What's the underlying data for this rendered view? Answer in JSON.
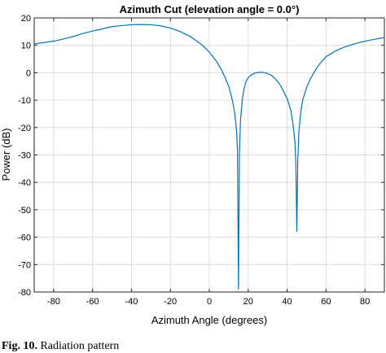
{
  "figure": {
    "caption_label": "Fig. 10.",
    "caption_text": "Radiation pattern"
  },
  "chart_data": {
    "type": "line",
    "title": "Azimuth Cut (elevation angle = 0.0°)",
    "xlabel": "Azimuth Angle (degrees)",
    "ylabel": "Power (dB)",
    "xlim": [
      -90,
      90
    ],
    "ylim": [
      -80,
      20
    ],
    "xticks": [
      -80,
      -60,
      -40,
      -20,
      0,
      20,
      40,
      60,
      80
    ],
    "yticks": [
      20,
      10,
      0,
      -10,
      -20,
      -30,
      -40,
      -50,
      -60,
      -70,
      -80
    ],
    "grid": true,
    "line_color": "#0072bd",
    "series": [
      {
        "x": [
          -90,
          -85,
          -80,
          -75,
          -70,
          -65,
          -60,
          -55,
          -50,
          -45,
          -40,
          -35,
          -30,
          -25,
          -20,
          -15,
          -10,
          -5,
          -2,
          0,
          2,
          4,
          6,
          8,
          10,
          11,
          12,
          13,
          14,
          14.5,
          15,
          15.5,
          16,
          17,
          18,
          19,
          20,
          22,
          24,
          26,
          28,
          30,
          32,
          34,
          36,
          38,
          40,
          41,
          42,
          43,
          44,
          44.5,
          45,
          45.5,
          46,
          47,
          48,
          50,
          52,
          54,
          56,
          58,
          60,
          65,
          70,
          75,
          80,
          85,
          90
        ],
        "y": [
          10.5,
          11.0,
          11.5,
          12.3,
          13.2,
          14.3,
          15.2,
          16.0,
          16.8,
          17.2,
          17.5,
          17.6,
          17.5,
          17.1,
          16.3,
          15.0,
          13.3,
          10.8,
          9.0,
          7.5,
          5.8,
          3.8,
          1.4,
          -1.5,
          -5.0,
          -7.5,
          -10.5,
          -14.5,
          -21.0,
          -28.0,
          -79.0,
          -30.0,
          -18.0,
          -9.5,
          -5.5,
          -3.0,
          -1.8,
          -0.6,
          0.0,
          0.2,
          0.1,
          -0.3,
          -1.0,
          -2.3,
          -4.0,
          -6.5,
          -9.5,
          -11.5,
          -14.0,
          -18.5,
          -25.0,
          -33.0,
          -58.0,
          -32.0,
          -22.0,
          -14.5,
          -10.0,
          -5.5,
          -2.2,
          0.3,
          2.5,
          4.3,
          5.8,
          8.0,
          9.5,
          10.6,
          11.5,
          12.2,
          12.8
        ]
      }
    ]
  }
}
